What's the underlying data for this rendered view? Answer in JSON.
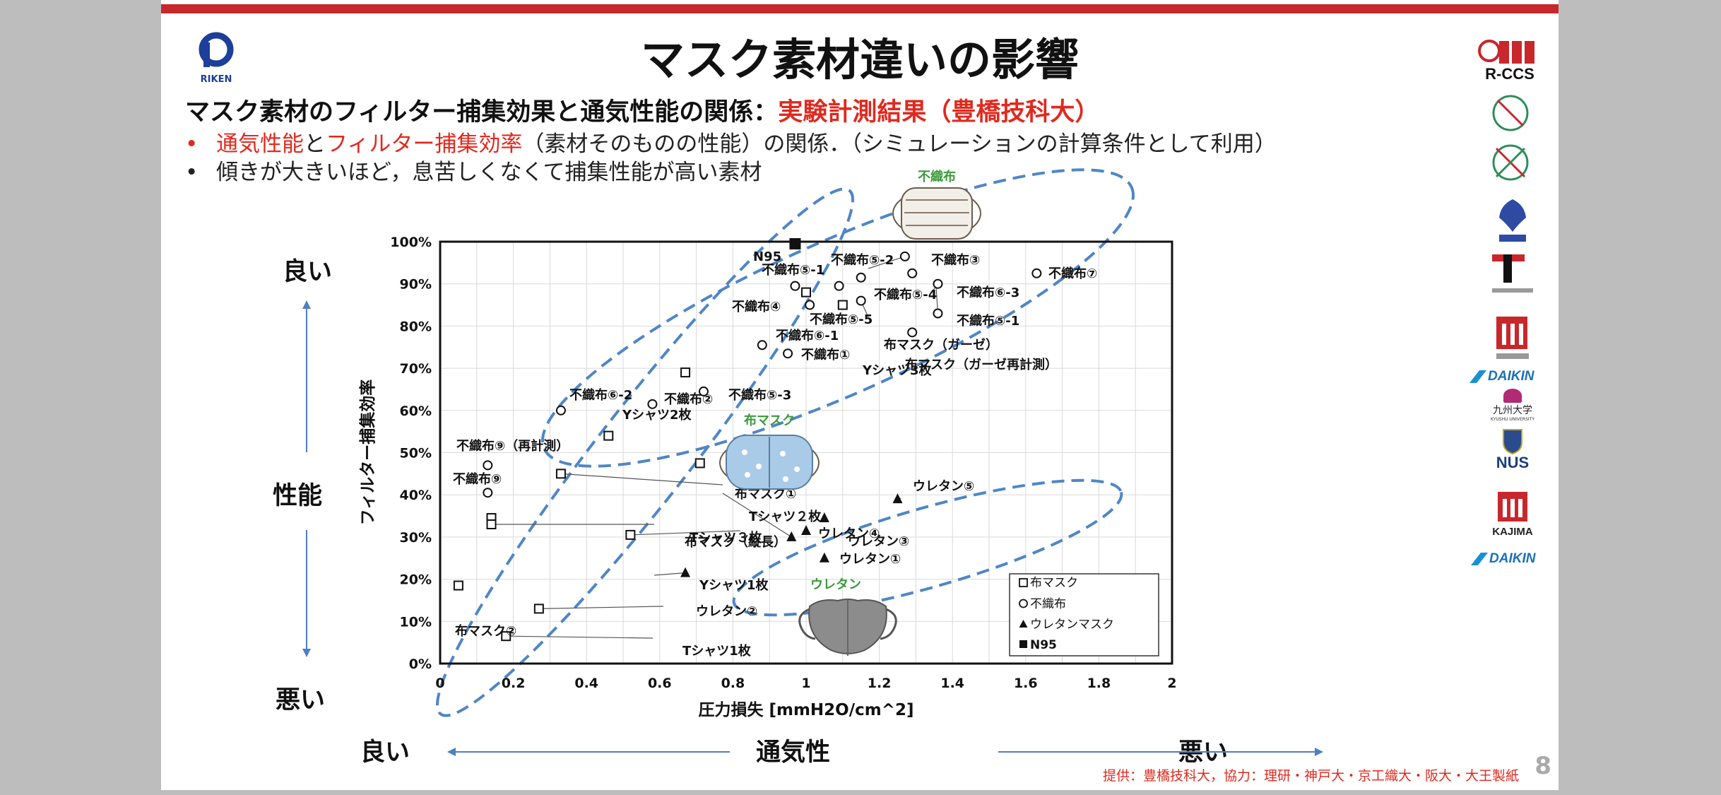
{
  "slide": {
    "title": "マスク素材違いの影響",
    "subtitle_black": "マスク素材のフィルター捕集効果と通気性能の関係：",
    "subtitle_red": "実験計測結果（豊橋技科大）",
    "bullet1": {
      "red1": "通気性能",
      "mid1": "と",
      "red2": "フィルター捕集効率",
      "rest": "（素材そのものの性能）の関係．（シミュレーションの計算条件として利用）"
    },
    "bullet2": "傾きが大きいほど，息苦しくなくて捕集性能が高い素材",
    "left_axis": {
      "top": "良い",
      "middle": "性能",
      "bottom": "悪い"
    },
    "bottom_axis": {
      "left": "良い",
      "middle": "通気性",
      "right": "悪い"
    },
    "footer": "提供：豊橋技科大，協力：理研・神戸大・京工織大・阪大・大王製紙",
    "page_number": "8",
    "logos": {
      "riken": "RIKEN",
      "rccs": "R-CCS",
      "daikin1": "DAIKIN",
      "kyushu": "九州大学",
      "kyushu_en": "KYUSHU UNIVERSITY",
      "nus": "NUS",
      "kajima": "KAJIMA",
      "daikin2": "DAIKIN"
    }
  },
  "chart_data": {
    "type": "scatter",
    "xlabel": "圧力損失 [mmH2O/cm^2]",
    "ylabel": "フィルター捕集効率",
    "xlim": [
      0,
      2
    ],
    "ylim": [
      0,
      100
    ],
    "xticks": [
      "0",
      "0.2",
      "0.4",
      "0.6",
      "0.8",
      "1",
      "1.2",
      "1.4",
      "1.6",
      "1.8",
      "2"
    ],
    "yticks": [
      "0%",
      "10%",
      "20%",
      "30%",
      "40%",
      "50%",
      "60%",
      "70%",
      "80%",
      "90%",
      "100%"
    ],
    "grid": true,
    "legend": {
      "position": "bottom-right",
      "entries": [
        {
          "name": "布マスク",
          "marker": "square"
        },
        {
          "name": "不織布",
          "marker": "circle"
        },
        {
          "name": "ウレタンマスク",
          "marker": "triangle"
        },
        {
          "name": "N95",
          "marker": "filled-square"
        }
      ]
    },
    "group_labels": [
      {
        "text": "不織布",
        "color": "#3a9a3a"
      },
      {
        "text": "布マスク",
        "color": "#3a9a3a"
      },
      {
        "text": "ウレタン",
        "color": "#3a9a3a"
      }
    ],
    "series": [
      {
        "name": "布マスク",
        "marker": "square",
        "points": [
          {
            "x": 0.05,
            "y": 18.5,
            "label": ""
          },
          {
            "x": 0.18,
            "y": 6.5,
            "label": "Tシャツ1枚"
          },
          {
            "x": 0.27,
            "y": 13,
            "label": "Yシャツ1枚"
          },
          {
            "x": 0.14,
            "y": 34.5,
            "label": ""
          },
          {
            "x": 0.14,
            "y": 33,
            "label": "布マスク（縦長）"
          },
          {
            "x": 0.33,
            "y": 45,
            "label": "布マスク①"
          },
          {
            "x": 0.46,
            "y": 54,
            "label": ""
          },
          {
            "x": 0.52,
            "y": 30.5,
            "label": "Tシャツ２枚"
          },
          {
            "x": 0.67,
            "y": 69,
            "label": "Yシャツ3枚"
          },
          {
            "x": 0.71,
            "y": 47.5,
            "label": ""
          },
          {
            "x": 1.0,
            "y": 88,
            "label": ""
          },
          {
            "x": 1.1,
            "y": 85,
            "label": ""
          }
        ]
      },
      {
        "name": "不織布",
        "marker": "circle",
        "points": [
          {
            "x": 0.13,
            "y": 47,
            "label": "不織布⑨（再計測）"
          },
          {
            "x": 0.13,
            "y": 40.5,
            "label": "不織布⑨"
          },
          {
            "x": 0.33,
            "y": 60,
            "label": "不織布⑥-2"
          },
          {
            "x": 0.58,
            "y": 61.5,
            "label": "Yシャツ2枚"
          },
          {
            "x": 0.72,
            "y": 64.5,
            "label": "不織布②"
          },
          {
            "x": 0.88,
            "y": 75.5,
            "label": "不織布⑥-1"
          },
          {
            "x": 0.95,
            "y": 73.5,
            "label": "不織布①"
          },
          {
            "x": 0.97,
            "y": 89.5,
            "label": "不織布⑤-1"
          },
          {
            "x": 1.01,
            "y": 85,
            "label": "不織布④"
          },
          {
            "x": 1.09,
            "y": 89.5,
            "label": ""
          },
          {
            "x": 1.15,
            "y": 91.5,
            "label": ""
          },
          {
            "x": 1.15,
            "y": 86,
            "label": "不織布⑤-5"
          },
          {
            "x": 1.27,
            "y": 96.5,
            "label": "不織布⑤-2"
          },
          {
            "x": 1.29,
            "y": 92.5,
            "label": "不織布③"
          },
          {
            "x": 1.36,
            "y": 90,
            "label": "不織布⑤-4"
          },
          {
            "x": 1.36,
            "y": 83,
            "label": "不織布⑥-3"
          },
          {
            "x": 1.29,
            "y": 78.5,
            "label": "布マスク（ガーゼ）"
          },
          {
            "x": 1.63,
            "y": 92.5,
            "label": "不織布⑦"
          }
        ]
      },
      {
        "name": "ウレタンマスク",
        "marker": "triangle",
        "points": [
          {
            "x": 0.67,
            "y": 21.5,
            "label": "ウレタン②"
          },
          {
            "x": 0.96,
            "y": 30,
            "label": "Tシャツ３枚"
          },
          {
            "x": 1.0,
            "y": 31.5,
            "label": ""
          },
          {
            "x": 1.05,
            "y": 34.5,
            "label": "ウレタン④"
          },
          {
            "x": 1.05,
            "y": 25,
            "label": "ウレタン①"
          },
          {
            "x": 1.25,
            "y": 39,
            "label": "ウレタン⑤"
          }
        ]
      },
      {
        "name": "N95",
        "marker": "filled-square",
        "points": [
          {
            "x": 0.97,
            "y": 99.5,
            "label": "N95"
          }
        ]
      }
    ],
    "extra_labels": [
      "不織布⑤-3",
      "不織布⑤-1",
      "ウレタン③",
      "布マスク②",
      "布マスク（ガーゼ再計測）"
    ]
  }
}
